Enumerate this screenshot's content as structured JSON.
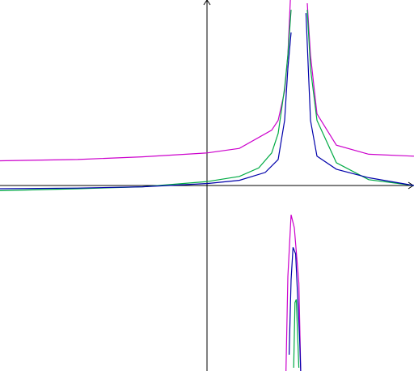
{
  "chart_data": {
    "type": "line",
    "title": "",
    "xlabel": "",
    "ylabel": "",
    "grid": false,
    "legend": "none",
    "xlim": [
      -3.2,
      3.2
    ],
    "ylim": [
      -2.85,
      2.85
    ],
    "asymptote_x": 1.4,
    "series": [
      {
        "color": "#cc00cc",
        "samples": [
          [
            -3.2,
            0.38
          ],
          [
            -2.0,
            0.4
          ],
          [
            -1.0,
            0.44
          ],
          [
            0.0,
            0.5
          ],
          [
            0.5,
            0.57
          ],
          [
            1.0,
            0.85
          ],
          [
            1.1,
            1.0
          ],
          [
            1.2,
            1.45
          ],
          [
            1.25,
            2.0
          ],
          [
            1.3,
            3.1
          ],
          [
            1.55,
            2.8
          ],
          [
            1.6,
            2.0
          ],
          [
            1.7,
            1.1
          ],
          [
            2.0,
            0.62
          ],
          [
            2.5,
            0.48
          ],
          [
            3.2,
            0.45
          ]
        ],
        "lower_branch": [
          [
            1.22,
            -2.9
          ],
          [
            1.25,
            -1.4
          ],
          [
            1.3,
            -0.45
          ],
          [
            1.35,
            -0.65
          ],
          [
            1.42,
            -1.5
          ],
          [
            1.45,
            -2.9
          ]
        ]
      },
      {
        "color": "#00aa44",
        "samples": [
          [
            -3.2,
            -0.08
          ],
          [
            -2.0,
            -0.05
          ],
          [
            -1.0,
            -0.02
          ],
          [
            0.0,
            0.06
          ],
          [
            0.5,
            0.14
          ],
          [
            0.8,
            0.27
          ],
          [
            1.0,
            0.5
          ],
          [
            1.1,
            0.8
          ],
          [
            1.2,
            1.5
          ],
          [
            1.25,
            2.0
          ],
          [
            1.3,
            2.7
          ],
          [
            1.55,
            2.7
          ],
          [
            1.6,
            1.8
          ],
          [
            1.7,
            1.0
          ],
          [
            2.0,
            0.35
          ],
          [
            2.5,
            0.09
          ],
          [
            3.2,
            0.0
          ]
        ],
        "lower_branch": [
          [
            1.34,
            -2.8
          ],
          [
            1.36,
            -1.8
          ],
          [
            1.38,
            -1.75
          ],
          [
            1.42,
            -2.8
          ]
        ]
      },
      {
        "color": "#0000aa",
        "samples": [
          [
            -3.2,
            -0.05
          ],
          [
            -2.0,
            -0.04
          ],
          [
            -1.0,
            -0.02
          ],
          [
            0.0,
            0.03
          ],
          [
            0.5,
            0.08
          ],
          [
            0.9,
            0.2
          ],
          [
            1.1,
            0.4
          ],
          [
            1.2,
            1.0
          ],
          [
            1.25,
            1.8
          ],
          [
            1.3,
            2.35
          ],
          [
            1.53,
            2.65
          ],
          [
            1.6,
            1.0
          ],
          [
            1.7,
            0.45
          ],
          [
            2.0,
            0.25
          ],
          [
            2.5,
            0.12
          ],
          [
            3.2,
            0.0
          ]
        ],
        "lower_branch": [
          [
            1.27,
            -2.6
          ],
          [
            1.3,
            -1.45
          ],
          [
            1.33,
            -0.95
          ],
          [
            1.37,
            -1.05
          ],
          [
            1.43,
            -2.3
          ],
          [
            1.45,
            -2.9
          ]
        ]
      }
    ]
  }
}
